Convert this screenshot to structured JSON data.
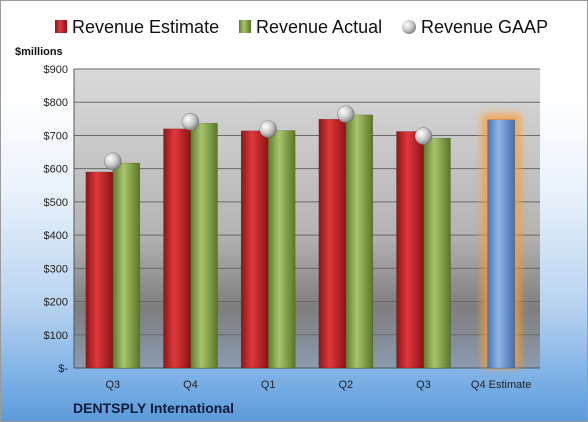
{
  "chart_data": {
    "type": "bar",
    "ylabel": "$millions",
    "footer_label": "DENTSPLY International",
    "categories": [
      "Q3",
      "Q4",
      "Q1",
      "Q2",
      "Q3",
      "Q4 Estimate"
    ],
    "ylim": [
      0,
      900
    ],
    "y_ticks": [
      0,
      100,
      200,
      300,
      400,
      500,
      600,
      700,
      800,
      900
    ],
    "y_tick_labels": [
      "$-",
      "$100",
      "$200",
      "$300",
      "$400",
      "$500",
      "$600",
      "$700",
      "$800",
      "$900"
    ],
    "grid": true,
    "legend_position": "top",
    "series": [
      {
        "name": "Revenue Estimate",
        "kind": "bar",
        "color": "#c0262b",
        "values": [
          590,
          720,
          714,
          749,
          712,
          null
        ]
      },
      {
        "name": "Revenue Actual",
        "kind": "bar",
        "color": "#8cb04e",
        "values": [
          617,
          737,
          715,
          762,
          692,
          null
        ]
      },
      {
        "name": "Revenue GAAP",
        "kind": "marker",
        "color": "#c8c8c8",
        "values": [
          622,
          741,
          719,
          764,
          698,
          null
        ]
      },
      {
        "name": "Q4 Estimate",
        "kind": "bar",
        "show_in_legend": false,
        "highlight": true,
        "color": "#6f9fd8",
        "values": [
          null,
          null,
          null,
          null,
          null,
          747
        ]
      }
    ]
  }
}
